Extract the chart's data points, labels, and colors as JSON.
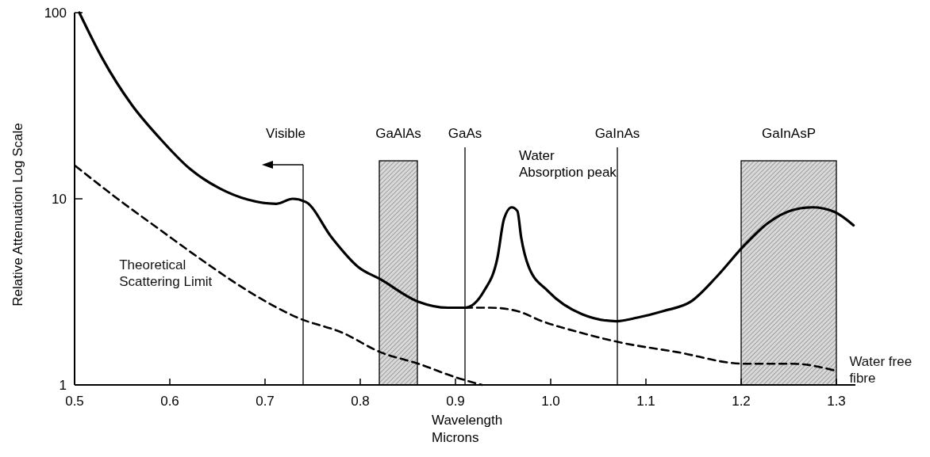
{
  "chart_data": {
    "type": "line",
    "xlabel": "Wavelength\nMicrons",
    "ylabel": "Relative Attenuation Log Scale",
    "log": "y",
    "xlim": [
      0.5,
      1.32
    ],
    "ylim": [
      1,
      100
    ],
    "xticks": [
      0.5,
      0.6,
      0.7,
      0.8,
      0.9,
      {
        "value": 1,
        "label": "1.0"
      },
      1.1,
      1.2,
      1.3
    ],
    "yticks": [
      1,
      10,
      100
    ],
    "series": [
      {
        "color": "#000000",
        "line_style": "solid",
        "x": [
          0.505,
          0.529,
          0.56,
          0.59,
          0.621,
          0.652,
          0.682,
          0.712,
          0.729,
          0.743,
          0.77,
          0.798,
          0.821,
          0.861,
          0.892,
          0.91,
          0.93,
          0.944,
          0.951,
          0.959,
          0.965,
          0.969,
          0.977,
          0.997,
          1.033,
          1.069,
          1.091,
          1.119,
          1.147,
          1.174,
          1.203,
          1.228,
          1.254,
          1.275,
          1.298,
          1.318
        ],
        "values": [
          100,
          57,
          32,
          21,
          14.5,
          11.4,
          9.9,
          9.4,
          10,
          9.6,
          6.2,
          4.3,
          3.7,
          2.8,
          2.6,
          2.6,
          3.2,
          4.8,
          7.8,
          9,
          8.6,
          6.2,
          4.3,
          3.2,
          2.4,
          2.2,
          2.3,
          2.5,
          2.8,
          3.8,
          5.6,
          7.4,
          8.7,
          9,
          8.5,
          7.2
        ]
      },
      {
        "name": "Theoretical Scattering Limit",
        "color": "#000000",
        "line_style": "dashed",
        "x": [
          0.501,
          0.544,
          0.59,
          0.636,
          0.682,
          0.734,
          0.782,
          0.821,
          0.861,
          0.9,
          0.928
        ],
        "values": [
          15,
          10.1,
          6.8,
          4.6,
          3.2,
          2.3,
          1.9,
          1.5,
          1.3,
          1.1,
          1
        ]
      },
      {
        "name": "Water free fibre",
        "color": "#000000",
        "line_style": "dashed",
        "x": [
          0.91,
          0.936,
          0.964,
          0.991,
          1.033,
          1.071,
          1.133,
          1.203,
          1.254,
          1.297
        ],
        "values": [
          2.6,
          2.6,
          2.5,
          2.2,
          1.9,
          1.7,
          1.5,
          1.3,
          1.3,
          1.2
        ]
      }
    ],
    "ref_lines": [
      {
        "axis": "x",
        "value": 0.74,
        "label": "Visible"
      },
      {
        "axis": "x",
        "value": 0.91,
        "label": "GaAs"
      },
      {
        "axis": "x",
        "value": 1.07,
        "label": "GaInAs"
      }
    ],
    "bands": [
      {
        "axis": "x",
        "from": 0.82,
        "to": 0.86,
        "label": "GaAlAs",
        "color": "#d9d9d9"
      },
      {
        "axis": "x",
        "from": 1.2,
        "to": 1.3,
        "label": "GaInAsP",
        "color": "#d9d9d9"
      }
    ],
    "annotations": [
      {
        "text": "Water Absorption peak",
        "x": 0.965,
        "y": 9
      }
    ],
    "grid": false
  }
}
